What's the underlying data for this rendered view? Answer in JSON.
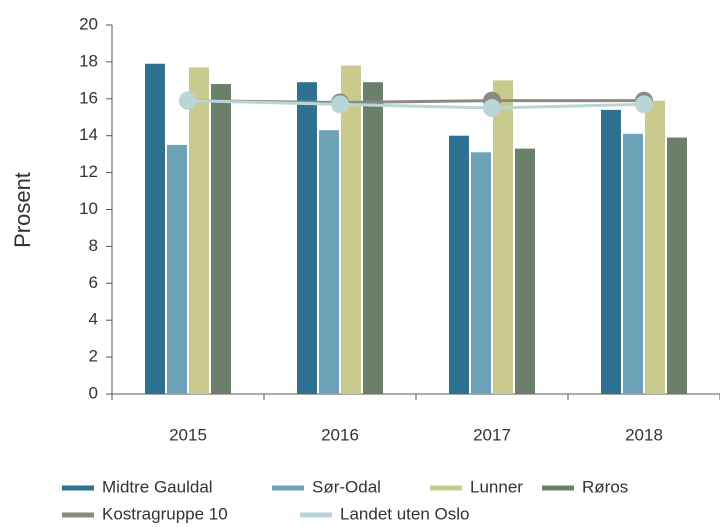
{
  "chart_data": {
    "type": "bar+line",
    "ylabel": "Prosent",
    "categories": [
      "2015",
      "2016",
      "2017",
      "2018"
    ],
    "series": [
      {
        "name": "Midtre Gauldal",
        "type": "bar",
        "color": "#2e7191",
        "values": [
          17.9,
          16.9,
          14.0,
          15.4
        ]
      },
      {
        "name": "Sør-Odal",
        "type": "bar",
        "color": "#6fa3b8",
        "values": [
          13.5,
          14.3,
          13.1,
          14.1
        ]
      },
      {
        "name": "Lunner",
        "type": "bar",
        "color": "#c9ca8e",
        "values": [
          17.7,
          17.8,
          17.0,
          15.9
        ]
      },
      {
        "name": "Røros",
        "type": "bar",
        "color": "#6b806b",
        "values": [
          16.8,
          16.9,
          13.3,
          13.9
        ]
      },
      {
        "name": "Kostragruppe 10",
        "type": "line",
        "color": "#8c8a80",
        "values": [
          15.9,
          15.8,
          15.9,
          15.9
        ]
      },
      {
        "name": "Landet uten Oslo",
        "type": "line",
        "color": "#b9d5d7",
        "values": [
          15.9,
          15.7,
          15.5,
          15.7
        ]
      }
    ],
    "ylim": [
      0,
      20
    ],
    "yticks": [
      0,
      2,
      4,
      6,
      8,
      10,
      12,
      14,
      16,
      18,
      20
    ]
  }
}
